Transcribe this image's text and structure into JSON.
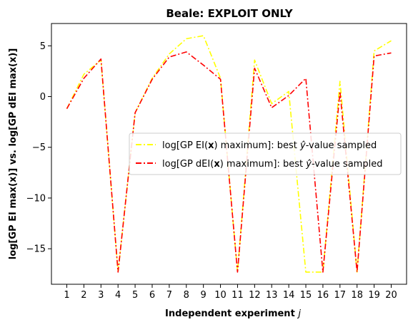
{
  "chart_data": {
    "type": "line",
    "title": "Beale: EXPLOIT ONLY",
    "xlabel": "Independent experiment j",
    "ylabel": "log[GP EI max(x)] vs. log[GP dEI max(x)]",
    "x": [
      1,
      2,
      3,
      4,
      5,
      6,
      7,
      8,
      9,
      10,
      11,
      12,
      13,
      14,
      15,
      16,
      17,
      18,
      19,
      20
    ],
    "xlim": [
      0.1,
      20.9
    ],
    "ylim": [
      -18.5,
      7.2
    ],
    "yticks": [
      5,
      0,
      -5,
      -10,
      -15
    ],
    "ytick_labels": [
      "5",
      "0",
      "−5",
      "−10",
      "−15"
    ],
    "grid": false,
    "legend_position": "center-right",
    "series": [
      {
        "name": "log[GP EI(x) maximum]: best ŷ-value sampled",
        "color": "#ffff00",
        "line_style": "dash-dot",
        "values": [
          -1.2,
          2.2,
          3.6,
          -17.3,
          -1.6,
          1.8,
          4.2,
          5.7,
          6.0,
          1.8,
          -17.3,
          3.6,
          -0.7,
          0.5,
          -17.3,
          -17.3,
          1.5,
          -17.3,
          4.5,
          5.5
        ]
      },
      {
        "name": "log[GP dEI(x) maximum]: best ŷ-value sampled",
        "color": "#ff0000",
        "line_style": "dash-dot",
        "values": [
          -1.2,
          1.8,
          3.7,
          -17.3,
          -1.6,
          1.7,
          3.9,
          4.4,
          3.1,
          1.7,
          -17.3,
          2.8,
          -1.1,
          0.1,
          1.8,
          -17.3,
          0.5,
          -17.3,
          4.0,
          4.3
        ]
      }
    ]
  }
}
